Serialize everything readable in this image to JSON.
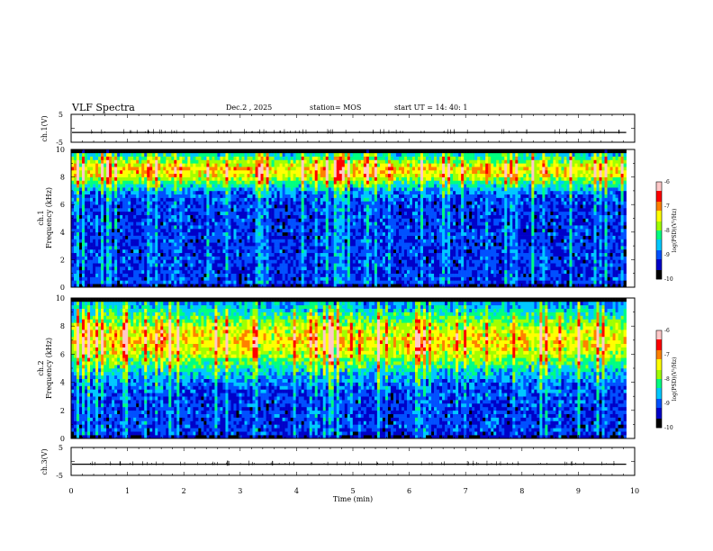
{
  "header": {
    "title": "VLF Spectra",
    "date": "Dec.2 , 2025",
    "station": "station= MOS",
    "start": "start UT = 14: 40: 1"
  },
  "chart_data": [
    {
      "type": "line",
      "name": "ch1-waveform",
      "ylabel": "ch.1(V)",
      "ylim": [
        -5,
        5
      ],
      "yticks": [
        "5",
        "-5"
      ],
      "level": -1.5,
      "xlim": [
        0,
        10
      ]
    },
    {
      "type": "heatmap",
      "name": "ch1-spectrogram",
      "ylabel_lines": [
        "ch.1",
        "Frequency (kHz)"
      ],
      "ylim": [
        0,
        10
      ],
      "yticks": [
        "0",
        "2",
        "4",
        "6",
        "8",
        "10"
      ],
      "xlim": [
        0,
        10
      ],
      "data_extent_min": 9.85,
      "band_center_khz": 8.5,
      "band_halfwidth_khz": 1.2,
      "seed": 7,
      "colorbar": {
        "label": "log(PSD)(V²/Hz)",
        "range": [
          -10,
          -6
        ],
        "ticks": [
          "-6",
          "-7",
          "-8",
          "-9",
          "-10"
        ]
      }
    },
    {
      "type": "heatmap",
      "name": "ch2-spectrogram",
      "ylabel_lines": [
        "ch.2",
        "Frequency (kHz)"
      ],
      "ylim": [
        0,
        10
      ],
      "yticks": [
        "0",
        "2",
        "4",
        "6",
        "8",
        "10"
      ],
      "xlim": [
        0,
        10
      ],
      "data_extent_min": 9.85,
      "band_center_khz": 7.0,
      "band_halfwidth_khz": 2.2,
      "seed": 19,
      "colorbar": {
        "label": "log(PSD)(V²/Hz)",
        "range": [
          -10,
          -6
        ],
        "ticks": [
          "-6",
          "-7",
          "-8",
          "-9",
          "-10"
        ]
      }
    },
    {
      "type": "line",
      "name": "ch3-waveform",
      "ylabel": "ch.3(V)",
      "ylim": [
        -5,
        5
      ],
      "yticks": [
        "5",
        "-5"
      ],
      "level": -1.0,
      "xlim": [
        0,
        10
      ]
    }
  ],
  "xaxis": {
    "label": "Time (min)",
    "ticks": [
      "0",
      "1",
      "2",
      "3",
      "4",
      "5",
      "6",
      "7",
      "8",
      "9",
      "10"
    ],
    "range": [
      0,
      10
    ]
  },
  "colors": {
    "scale": [
      "#000000",
      "#0000c8",
      "#0050ff",
      "#00c8ff",
      "#00ff80",
      "#a0ff00",
      "#ffff00",
      "#ff8000",
      "#ff0000",
      "#ffc8c8"
    ]
  }
}
